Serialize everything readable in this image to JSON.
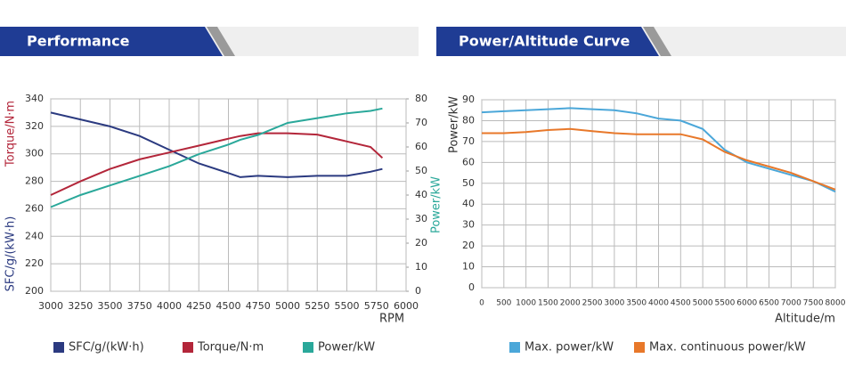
{
  "chart_data": [
    {
      "type": "line",
      "title": "Performance",
      "x": [
        3000,
        3250,
        3500,
        3750,
        4000,
        4250,
        4500,
        4600,
        4750,
        5000,
        5250,
        5500,
        5700,
        5800
      ],
      "series": [
        {
          "name": "SFC/g/(kW·h)",
          "color": "#2b3a80",
          "values": [
            330,
            325,
            320,
            313,
            303,
            293,
            286,
            283,
            284,
            283,
            284,
            284,
            287,
            289
          ]
        },
        {
          "name": "Torque/N·m",
          "color": "#b3263a",
          "values": [
            270,
            280,
            289,
            296,
            301,
            306,
            311,
            313,
            315,
            315,
            314,
            309,
            305,
            297
          ]
        },
        {
          "name": "Power/kW",
          "color": "#2aa89a",
          "axis": "y2",
          "values": [
            35,
            40,
            44,
            48,
            52,
            57,
            61,
            63,
            65,
            70,
            72,
            74,
            75,
            76
          ]
        }
      ],
      "xlim": [
        3000,
        6000
      ],
      "xticks": [
        3000,
        3250,
        3500,
        3750,
        4000,
        4250,
        4500,
        4750,
        5000,
        5250,
        5500,
        5750,
        6000
      ],
      "ylim": [
        200,
        340
      ],
      "yticks": [
        200,
        220,
        240,
        260,
        280,
        300,
        320,
        340
      ],
      "y2lim": [
        0,
        80
      ],
      "y2ticks": [
        0,
        10,
        20,
        30,
        40,
        50,
        60,
        70,
        80
      ],
      "ylabel": [
        {
          "text": "Torque/N·m",
          "color": "#b3263a"
        },
        {
          "text": "SFC/g/(kW·h)",
          "color": "#2b3a80"
        }
      ],
      "y2label": {
        "text": "Power/kW",
        "color": "#2aa89a"
      },
      "xlabel": "RPM",
      "grid": true,
      "legend": "bottom"
    },
    {
      "type": "line",
      "title": "Power/Altitude Curve",
      "x": [
        0,
        500,
        1000,
        1500,
        2000,
        2500,
        3000,
        3500,
        4000,
        4500,
        5000,
        5500,
        6000,
        6500,
        7000,
        7500,
        8000
      ],
      "series": [
        {
          "name": "Max. power/kW",
          "color": "#4ba7d9",
          "values": [
            84,
            84.5,
            85,
            85.5,
            86,
            85.5,
            85,
            83.5,
            81,
            80,
            76,
            66,
            60,
            57,
            54,
            51,
            46
          ]
        },
        {
          "name": "Max. continuous power/kW",
          "color": "#e8782a",
          "values": [
            74,
            74,
            74.5,
            75.5,
            76,
            75,
            74,
            73.5,
            73.5,
            73.5,
            71,
            65,
            61,
            58,
            55,
            51,
            47
          ]
        }
      ],
      "xlim": [
        0,
        8000
      ],
      "xticks": [
        0,
        500,
        1000,
        1500,
        2000,
        2500,
        3000,
        3500,
        4000,
        4500,
        5000,
        5500,
        6000,
        6500,
        7000,
        7500,
        8000
      ],
      "ylim": [
        0,
        90
      ],
      "yticks": [
        0,
        10,
        20,
        30,
        40,
        50,
        60,
        70,
        80,
        90
      ],
      "ylabel": [
        {
          "text": "Power/kW",
          "color": "#333333"
        }
      ],
      "xlabel": "Altitude/m",
      "grid": true,
      "legend": "bottom"
    }
  ]
}
